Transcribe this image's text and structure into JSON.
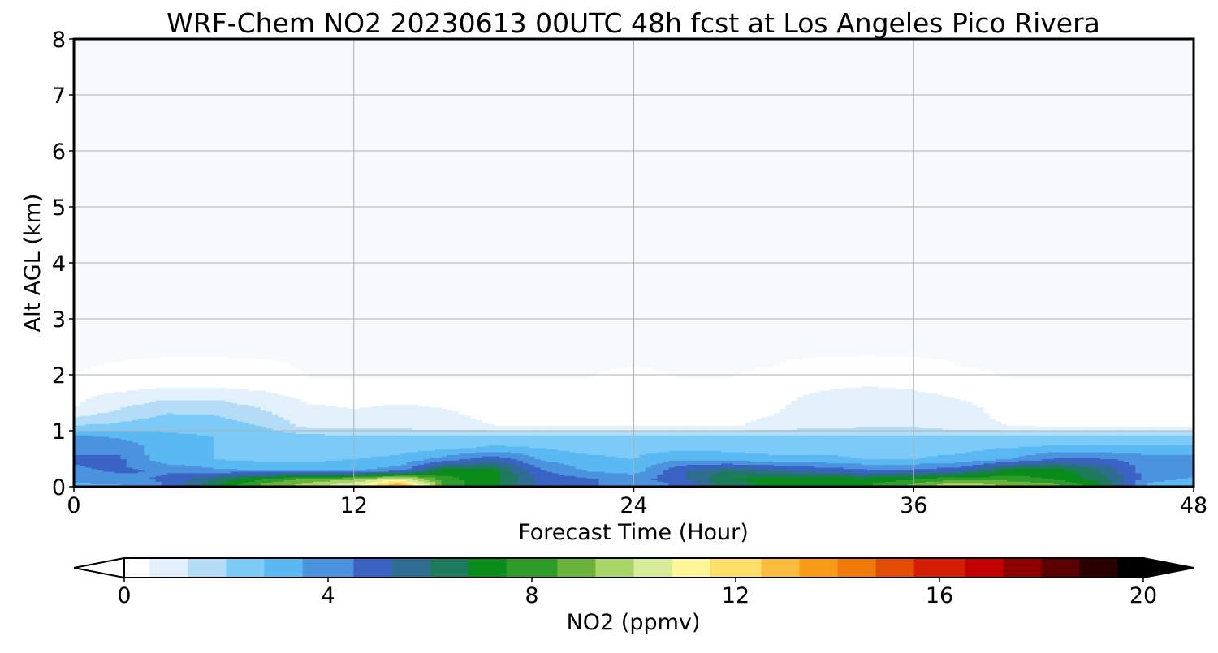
{
  "chart_data": {
    "type": "heatmap",
    "title": "WRF-Chem NO2  20230613 00UTC 48h fcst at Los Angeles Pico Rivera",
    "xlabel": "Forecast Time (Hour)",
    "ylabel": "Alt AGL (km)",
    "xlim": [
      0,
      48
    ],
    "ylim": [
      0,
      8
    ],
    "x_ticks": [
      0,
      12,
      24,
      36,
      48
    ],
    "y_ticks": [
      0,
      1,
      2,
      3,
      4,
      5,
      6,
      7,
      8
    ],
    "grid": true,
    "colorbar": {
      "label": "NO2  (ppmv)",
      "range": [
        0,
        20
      ],
      "ticks": [
        0,
        4,
        8,
        12,
        16,
        20
      ],
      "extend": "both",
      "orientation": "horizontal",
      "colors": [
        "#ffffff",
        "#e2f1fb",
        "#b5dcf6",
        "#7ccaf7",
        "#5ab8f2",
        "#4b93de",
        "#3b63c5",
        "#2f6d93",
        "#1e7a5c",
        "#0a8c1a",
        "#2f9c2a",
        "#6ab33a",
        "#a9d46a",
        "#d6ec9a",
        "#fff59a",
        "#fde06a",
        "#fbbb3c",
        "#f99b16",
        "#f07a08",
        "#e34d06",
        "#d41d02",
        "#c20000",
        "#8e0000",
        "#5a0000",
        "#2a0000",
        "#000000"
      ]
    },
    "field": {
      "x": [
        0,
        2,
        4,
        6,
        8,
        10,
        12,
        14,
        16,
        18,
        20,
        22,
        24,
        26,
        28,
        30,
        32,
        34,
        36,
        38,
        40,
        42,
        44,
        46,
        48
      ],
      "y": [
        0.05,
        0.15,
        0.3,
        0.5,
        0.7,
        0.9,
        1.1,
        1.4,
        1.8
      ],
      "values": [
        [
          3.5,
          3.6,
          4.5,
          6.5,
          8.5,
          9.5,
          10.5,
          13.0,
          8.0,
          7.0,
          5.0,
          4.5,
          4.0,
          4.5,
          6.5,
          7.0,
          7.2,
          7.5,
          8.5,
          9.8,
          9.0,
          8.5,
          7.0,
          3.5,
          3.0
        ],
        [
          4.0,
          4.2,
          4.5,
          6.0,
          7.5,
          8.5,
          9.0,
          10.5,
          7.8,
          7.0,
          5.0,
          4.5,
          4.0,
          5.0,
          6.8,
          7.0,
          7.0,
          7.0,
          7.5,
          8.2,
          8.0,
          7.5,
          6.5,
          4.0,
          3.5
        ],
        [
          4.3,
          4.5,
          4.3,
          3.8,
          3.5,
          3.3,
          3.5,
          4.0,
          7.2,
          7.0,
          4.5,
          3.5,
          3.2,
          5.0,
          6.0,
          5.5,
          5.0,
          4.5,
          4.5,
          5.0,
          7.0,
          7.3,
          6.0,
          4.0,
          4.0
        ],
        [
          4.5,
          4.5,
          3.0,
          2.8,
          2.6,
          2.6,
          2.8,
          3.0,
          4.0,
          5.0,
          3.5,
          3.0,
          2.8,
          3.5,
          3.2,
          3.0,
          3.0,
          2.8,
          2.8,
          3.0,
          3.5,
          4.5,
          4.5,
          4.0,
          4.0
        ],
        [
          4.2,
          4.2,
          3.0,
          2.8,
          2.6,
          2.4,
          2.4,
          2.5,
          2.6,
          3.0,
          2.8,
          2.5,
          2.5,
          2.6,
          2.6,
          2.5,
          2.5,
          2.5,
          2.5,
          2.6,
          2.8,
          3.0,
          3.0,
          3.0,
          3.0
        ],
        [
          3.8,
          3.5,
          3.0,
          2.8,
          2.5,
          2.3,
          2.2,
          2.2,
          2.2,
          2.2,
          2.2,
          2.2,
          2.2,
          2.2,
          2.2,
          2.2,
          2.2,
          2.2,
          2.2,
          2.2,
          2.2,
          2.2,
          2.2,
          2.2,
          2.2
        ],
        [
          2.0,
          2.2,
          2.5,
          2.4,
          2.0,
          0.9,
          0.8,
          0.8,
          0.6,
          0.4,
          0.3,
          0.3,
          0.3,
          0.3,
          0.3,
          0.6,
          0.9,
          1.0,
          1.0,
          0.6,
          0.4,
          0.2,
          0.2,
          0.2,
          0.2
        ],
        [
          0.4,
          1.2,
          1.8,
          1.8,
          1.2,
          0.5,
          0.4,
          0.5,
          0.4,
          0.2,
          0.1,
          0.1,
          0.2,
          0.1,
          0.1,
          0.3,
          0.8,
          1.0,
          0.9,
          0.6,
          0.2,
          0.1,
          0.1,
          0.1,
          0.1
        ],
        [
          0.05,
          0.15,
          0.3,
          0.3,
          0.2,
          0.05,
          0.05,
          0.05,
          0.05,
          0.05,
          0.05,
          0.05,
          0.1,
          0.05,
          0.05,
          0.1,
          0.3,
          0.4,
          0.3,
          0.1,
          0.05,
          0.05,
          0.05,
          0.05,
          0.05
        ]
      ]
    }
  }
}
